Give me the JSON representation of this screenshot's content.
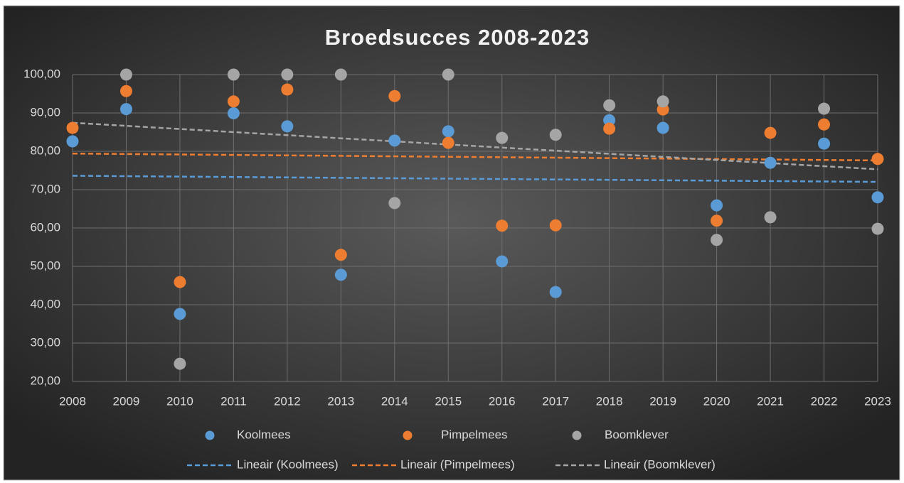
{
  "chart_data": {
    "type": "scatter",
    "title": "Broedsucces 2008-2023",
    "x": [
      2008,
      2009,
      2010,
      2011,
      2012,
      2013,
      2014,
      2015,
      2016,
      2017,
      2018,
      2019,
      2020,
      2021,
      2022,
      2023
    ],
    "xlim": [
      2008,
      2023
    ],
    "xticks": [
      2008,
      2009,
      2010,
      2011,
      2012,
      2013,
      2014,
      2015,
      2016,
      2017,
      2018,
      2019,
      2020,
      2021,
      2022,
      2023
    ],
    "ylim": [
      20,
      100
    ],
    "yticks": [
      {
        "value": 20,
        "label": "20,00"
      },
      {
        "value": 30,
        "label": "30,00"
      },
      {
        "value": 40,
        "label": "40,00"
      },
      {
        "value": 50,
        "label": "50,00"
      },
      {
        "value": 60,
        "label": "60,00"
      },
      {
        "value": 70,
        "label": "70,00"
      },
      {
        "value": 80,
        "label": "80,00"
      },
      {
        "value": 90,
        "label": "90,00"
      },
      {
        "value": 100,
        "label": "100,00"
      }
    ],
    "grid": true,
    "legend": "bottom",
    "series": [
      {
        "name": "Koolmees",
        "color": "#5b9bd5",
        "trendline_name": "Lineair (Koolmees)",
        "values": [
          82.6,
          91.0,
          37.6,
          89.9,
          86.5,
          47.8,
          82.8,
          85.2,
          51.3,
          43.3,
          88.1,
          86.1,
          65.9,
          77.0,
          82.0,
          68.0
        ]
      },
      {
        "name": "Pimpelmees",
        "color": "#ed7d31",
        "trendline_name": "Lineair (Pimpelmees)",
        "values": [
          86.1,
          95.7,
          45.9,
          93.0,
          96.1,
          53.0,
          94.4,
          82.2,
          60.6,
          60.7,
          85.9,
          90.9,
          61.9,
          84.8,
          87.0,
          78.0
        ]
      },
      {
        "name": "Boomklever",
        "color": "#a5a5a5",
        "trendline_name": "Lineair (Boomklever)",
        "values": [
          null,
          100,
          24.6,
          100,
          100,
          100,
          66.5,
          100,
          83.5,
          84.3,
          92.0,
          93.0,
          56.9,
          62.8,
          91.1,
          59.8
        ]
      }
    ]
  }
}
